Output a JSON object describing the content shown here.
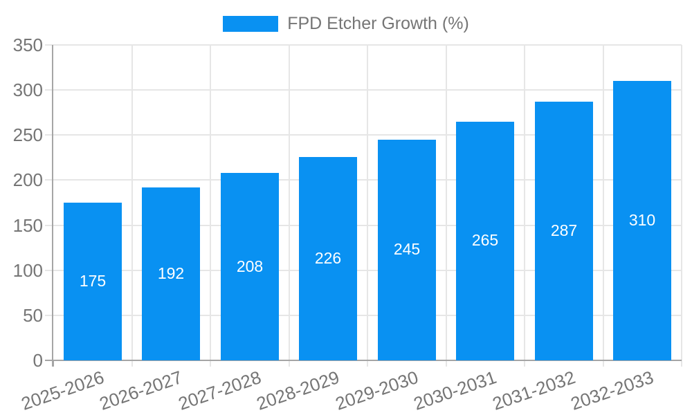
{
  "legend": {
    "label": "FPD Etcher Growth (%)"
  },
  "colors": {
    "bar": "#0991F2",
    "grid": "#E6E6E6",
    "tick": "#E6E6E6",
    "axis": "#A5A5A5",
    "axis_text": "#757575",
    "value_text": "#FFFFFF",
    "background": "#FFFFFF"
  },
  "chart_data": {
    "type": "bar",
    "title": "FPD Etcher Growth (%)",
    "categories": [
      "2025-2026",
      "2026-2027",
      "2027-2028",
      "2028-2029",
      "2029-2030",
      "2030-2031",
      "2031-2032",
      "2032-2033"
    ],
    "values": [
      175,
      192,
      208,
      226,
      245,
      265,
      287,
      310
    ],
    "series_name": "FPD Etcher Growth (%)",
    "xlabel": "",
    "ylabel": "",
    "ylim": [
      0,
      350
    ],
    "ytick_step": 50,
    "ytick_labels": [
      "0",
      "50",
      "100",
      "150",
      "200",
      "250",
      "300",
      "350"
    ],
    "grid": "on",
    "legend_position": "top-center",
    "value_labels": "inside-center",
    "x_label_rotation_deg": -19
  }
}
